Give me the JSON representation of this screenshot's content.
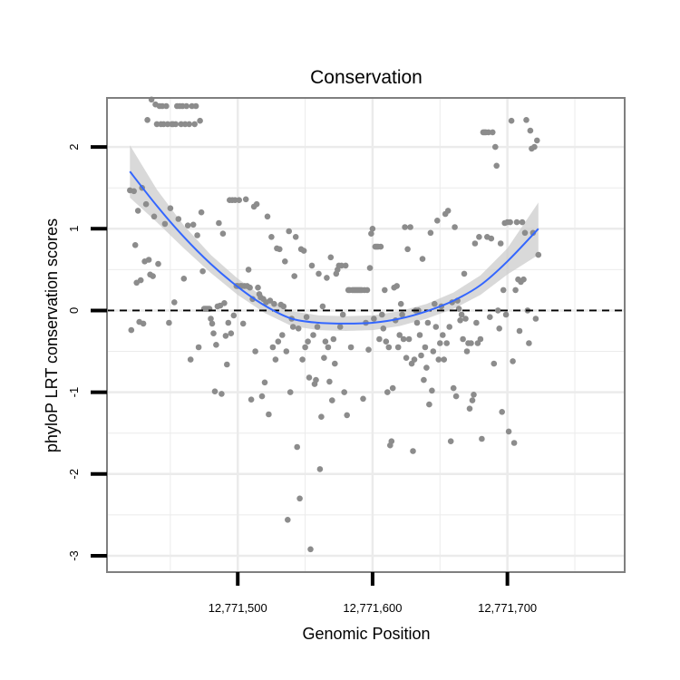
{
  "chart_data": {
    "type": "scatter",
    "title": "Conservation",
    "xlabel": "Genomic Position",
    "ylabel": "phyloP LRT conservation scores",
    "xlim": [
      12771403,
      12771787
    ],
    "ylim": [
      -3.2,
      2.6
    ],
    "x_ticks": [
      {
        "value": 12771500,
        "label": "12,771,500"
      },
      {
        "value": 12771600,
        "label": "12,771,600"
      },
      {
        "value": 12771700,
        "label": "12,771,700"
      }
    ],
    "y_ticks": [
      {
        "value": -3,
        "label": "-3"
      },
      {
        "value": -2,
        "label": "-2"
      },
      {
        "value": -1,
        "label": "-1"
      },
      {
        "value": 0,
        "label": "0"
      },
      {
        "value": 1,
        "label": "1"
      },
      {
        "value": 2,
        "label": "2"
      }
    ],
    "reference_line": {
      "y": 0,
      "style": "dashed"
    },
    "colors": {
      "points": "#8c8c8c",
      "smooth": "#3366ff",
      "ribbon": "#cccccc",
      "grid": "#ebebeb",
      "border": "#7f7f7f"
    },
    "points": [
      [
        12771420,
        1.47
      ],
      [
        12771421,
        -0.24
      ],
      [
        12771423,
        1.46
      ],
      [
        12771424,
        0.8
      ],
      [
        12771425,
        0.34
      ],
      [
        12771426,
        1.22
      ],
      [
        12771427,
        -0.14
      ],
      [
        12771428,
        0.37
      ],
      [
        12771429,
        1.5
      ],
      [
        12771430,
        -0.16
      ],
      [
        12771431,
        0.6
      ],
      [
        12771432,
        1.3
      ],
      [
        12771433,
        2.33
      ],
      [
        12771434,
        0.62
      ],
      [
        12771435,
        0.44
      ],
      [
        12771436,
        2.58
      ],
      [
        12771437,
        0.42
      ],
      [
        12771438,
        1.15
      ],
      [
        12771439,
        2.52
      ],
      [
        12771440,
        2.28
      ],
      [
        12771441,
        0.57
      ],
      [
        12771442,
        2.5
      ],
      [
        12771443,
        2.28
      ],
      [
        12771444,
        2.5
      ],
      [
        12771445,
        2.28
      ],
      [
        12771446,
        1.06
      ],
      [
        12771447,
        2.5
      ],
      [
        12771448,
        2.28
      ],
      [
        12771449,
        -0.15
      ],
      [
        12771450,
        1.25
      ],
      [
        12771451,
        2.28
      ],
      [
        12771452,
        2.28
      ],
      [
        12771453,
        0.1
      ],
      [
        12771454,
        2.28
      ],
      [
        12771455,
        2.5
      ],
      [
        12771456,
        1.12
      ],
      [
        12771457,
        2.5
      ],
      [
        12771458,
        2.28
      ],
      [
        12771459,
        2.5
      ],
      [
        12771460,
        0.39
      ],
      [
        12771461,
        2.28
      ],
      [
        12771462,
        2.5
      ],
      [
        12771463,
        1.04
      ],
      [
        12771464,
        2.28
      ],
      [
        12771465,
        -0.6
      ],
      [
        12771466,
        2.5
      ],
      [
        12771467,
        1.05
      ],
      [
        12771468,
        2.28
      ],
      [
        12771469,
        2.5
      ],
      [
        12771470,
        0.92
      ],
      [
        12771471,
        -0.45
      ],
      [
        12771472,
        2.32
      ],
      [
        12771473,
        1.2
      ],
      [
        12771474,
        0.48
      ],
      [
        12771475,
        0.02
      ],
      [
        12771476,
        0.02
      ],
      [
        12771477,
        0.02
      ],
      [
        12771478,
        0.02
      ],
      [
        12771479,
        0.02
      ],
      [
        12771480,
        -0.1
      ],
      [
        12771481,
        -0.16
      ],
      [
        12771482,
        -0.28
      ],
      [
        12771483,
        -0.99
      ],
      [
        12771484,
        -0.42
      ],
      [
        12771485,
        0.05
      ],
      [
        12771486,
        1.07
      ],
      [
        12771487,
        0.06
      ],
      [
        12771488,
        -1.02
      ],
      [
        12771489,
        0.94
      ],
      [
        12771490,
        0.09
      ],
      [
        12771491,
        -0.31
      ],
      [
        12771492,
        -0.66
      ],
      [
        12771493,
        -0.15
      ],
      [
        12771494,
        1.35
      ],
      [
        12771495,
        -0.28
      ],
      [
        12771496,
        1.35
      ],
      [
        12771497,
        -0.06
      ],
      [
        12771498,
        1.35
      ],
      [
        12771499,
        0.3
      ],
      [
        12771500,
        0.3
      ],
      [
        12771501,
        1.35
      ],
      [
        12771502,
        0.3
      ],
      [
        12771503,
        0.3
      ],
      [
        12771504,
        -0.16
      ],
      [
        12771505,
        0.3
      ],
      [
        12771506,
        1.36
      ],
      [
        12771507,
        0.3
      ],
      [
        12771508,
        0.5
      ],
      [
        12771509,
        0.28
      ],
      [
        12771510,
        -1.09
      ],
      [
        12771511,
        0.14
      ],
      [
        12771512,
        1.27
      ],
      [
        12771513,
        -0.5
      ],
      [
        12771514,
        1.3
      ],
      [
        12771515,
        0.28
      ],
      [
        12771516,
        0.2
      ],
      [
        12771517,
        0.16
      ],
      [
        12771518,
        -1.05
      ],
      [
        12771519,
        0.14
      ],
      [
        12771520,
        -0.88
      ],
      [
        12771521,
        0.1
      ],
      [
        12771522,
        1.15
      ],
      [
        12771523,
        -1.27
      ],
      [
        12771524,
        0.12
      ],
      [
        12771525,
        0.9
      ],
      [
        12771526,
        -0.45
      ],
      [
        12771527,
        0.08
      ],
      [
        12771528,
        -0.6
      ],
      [
        12771529,
        0.76
      ],
      [
        12771530,
        -0.38
      ],
      [
        12771531,
        0.75
      ],
      [
        12771532,
        0.07
      ],
      [
        12771533,
        -0.3
      ],
      [
        12771534,
        0.05
      ],
      [
        12771535,
        0.6
      ],
      [
        12771536,
        -0.5
      ],
      [
        12771537,
        -2.56
      ],
      [
        12771538,
        0.97
      ],
      [
        12771539,
        -1.0
      ],
      [
        12771540,
        -0.1
      ],
      [
        12771541,
        -0.2
      ],
      [
        12771542,
        0.42
      ],
      [
        12771543,
        0.9
      ],
      [
        12771544,
        -1.67
      ],
      [
        12771545,
        -0.22
      ],
      [
        12771546,
        -2.3
      ],
      [
        12771547,
        0.75
      ],
      [
        12771548,
        -0.6
      ],
      [
        12771549,
        0.73
      ],
      [
        12771550,
        -0.45
      ],
      [
        12771551,
        -0.08
      ],
      [
        12771552,
        -0.38
      ],
      [
        12771553,
        -0.82
      ],
      [
        12771554,
        -2.92
      ],
      [
        12771555,
        0.55
      ],
      [
        12771556,
        -0.3
      ],
      [
        12771557,
        -0.9
      ],
      [
        12771558,
        -0.85
      ],
      [
        12771559,
        -0.2
      ],
      [
        12771560,
        0.45
      ],
      [
        12771561,
        -1.94
      ],
      [
        12771562,
        -1.3
      ],
      [
        12771563,
        0.05
      ],
      [
        12771564,
        -0.58
      ],
      [
        12771565,
        -0.38
      ],
      [
        12771566,
        0.4
      ],
      [
        12771567,
        -0.45
      ],
      [
        12771568,
        -0.87
      ],
      [
        12771569,
        0.65
      ],
      [
        12771570,
        -1.1
      ],
      [
        12771571,
        -0.35
      ],
      [
        12771572,
        -0.65
      ],
      [
        12771573,
        0.45
      ],
      [
        12771574,
        0.5
      ],
      [
        12771575,
        0.55
      ],
      [
        12771576,
        -0.2
      ],
      [
        12771577,
        0.55
      ],
      [
        12771578,
        -0.05
      ],
      [
        12771579,
        -1.0
      ],
      [
        12771580,
        0.55
      ],
      [
        12771581,
        -1.28
      ],
      [
        12771582,
        0.25
      ],
      [
        12771583,
        0.25
      ],
      [
        12771584,
        -0.45
      ],
      [
        12771585,
        0.25
      ],
      [
        12771586,
        0.25
      ],
      [
        12771587,
        0.25
      ],
      [
        12771588,
        0.25
      ],
      [
        12771589,
        0.25
      ],
      [
        12771590,
        0.25
      ],
      [
        12771591,
        0.25
      ],
      [
        12771592,
        0.25
      ],
      [
        12771593,
        -1.08
      ],
      [
        12771594,
        0.25
      ],
      [
        12771595,
        -0.15
      ],
      [
        12771596,
        0.25
      ],
      [
        12771597,
        -0.48
      ],
      [
        12771598,
        0.52
      ],
      [
        12771599,
        0.94
      ],
      [
        12771600,
        1.0
      ],
      [
        12771601,
        -0.1
      ],
      [
        12771602,
        0.78
      ],
      [
        12771603,
        0.78
      ],
      [
        12771604,
        0.78
      ],
      [
        12771605,
        -0.35
      ],
      [
        12771606,
        0.78
      ],
      [
        12771607,
        -0.05
      ],
      [
        12771608,
        -0.22
      ],
      [
        12771609,
        0.25
      ],
      [
        12771610,
        -0.38
      ],
      [
        12771611,
        -1.0
      ],
      [
        12771612,
        -0.45
      ],
      [
        12771613,
        -1.65
      ],
      [
        12771614,
        -1.6
      ],
      [
        12771615,
        -0.95
      ],
      [
        12771616,
        0.28
      ],
      [
        12771617,
        -0.12
      ],
      [
        12771618,
        0.3
      ],
      [
        12771619,
        -0.45
      ],
      [
        12771620,
        -0.3
      ],
      [
        12771621,
        0.08
      ],
      [
        12771622,
        -0.05
      ],
      [
        12771623,
        -0.35
      ],
      [
        12771624,
        1.02
      ],
      [
        12771625,
        -0.58
      ],
      [
        12771626,
        0.75
      ],
      [
        12771627,
        -0.35
      ],
      [
        12771628,
        1.02
      ],
      [
        12771629,
        -0.65
      ],
      [
        12771630,
        -1.72
      ],
      [
        12771631,
        -0.6
      ],
      [
        12771632,
        0.0
      ],
      [
        12771633,
        -0.15
      ],
      [
        12771634,
        0.0
      ],
      [
        12771635,
        -0.3
      ],
      [
        12771636,
        -0.55
      ],
      [
        12771637,
        0.63
      ],
      [
        12771638,
        -0.85
      ],
      [
        12771639,
        -0.45
      ],
      [
        12771640,
        -0.7
      ],
      [
        12771641,
        -0.15
      ],
      [
        12771642,
        -1.15
      ],
      [
        12771643,
        0.95
      ],
      [
        12771644,
        -0.98
      ],
      [
        12771645,
        -0.5
      ],
      [
        12771646,
        0.08
      ],
      [
        12771647,
        -0.2
      ],
      [
        12771648,
        1.1
      ],
      [
        12771649,
        -0.6
      ],
      [
        12771650,
        -0.4
      ],
      [
        12771651,
        0.05
      ],
      [
        12771652,
        -0.3
      ],
      [
        12771653,
        -0.6
      ],
      [
        12771654,
        1.18
      ],
      [
        12771655,
        -0.4
      ],
      [
        12771656,
        1.22
      ],
      [
        12771657,
        -0.2
      ],
      [
        12771658,
        -1.6
      ],
      [
        12771659,
        0.1
      ],
      [
        12771660,
        -0.95
      ],
      [
        12771661,
        1.02
      ],
      [
        12771662,
        -1.05
      ],
      [
        12771663,
        0.12
      ],
      [
        12771664,
        0.02
      ],
      [
        12771665,
        -0.12
      ],
      [
        12771666,
        -0.05
      ],
      [
        12771667,
        -0.35
      ],
      [
        12771668,
        0.45
      ],
      [
        12771669,
        -0.1
      ],
      [
        12771670,
        -0.5
      ],
      [
        12771671,
        -0.4
      ],
      [
        12771672,
        -1.2
      ],
      [
        12771673,
        -0.4
      ],
      [
        12771674,
        -1.1
      ],
      [
        12771675,
        -1.03
      ],
      [
        12771676,
        0.82
      ],
      [
        12771677,
        -0.15
      ],
      [
        12771678,
        -0.4
      ],
      [
        12771679,
        0.9
      ],
      [
        12771680,
        -0.35
      ],
      [
        12771681,
        -1.57
      ],
      [
        12771682,
        2.18
      ],
      [
        12771683,
        2.18
      ],
      [
        12771684,
        2.18
      ],
      [
        12771685,
        0.9
      ],
      [
        12771686,
        2.18
      ],
      [
        12771687,
        -0.08
      ],
      [
        12771688,
        0.88
      ],
      [
        12771689,
        2.18
      ],
      [
        12771690,
        -0.65
      ],
      [
        12771691,
        2.0
      ],
      [
        12771692,
        1.77
      ],
      [
        12771693,
        0.0
      ],
      [
        12771694,
        -0.22
      ],
      [
        12771695,
        0.82
      ],
      [
        12771696,
        -1.24
      ],
      [
        12771697,
        0.25
      ],
      [
        12771698,
        1.07
      ],
      [
        12771699,
        -0.05
      ],
      [
        12771700,
        1.08
      ],
      [
        12771701,
        -1.48
      ],
      [
        12771702,
        1.08
      ],
      [
        12771703,
        2.32
      ],
      [
        12771704,
        -0.62
      ],
      [
        12771705,
        -1.62
      ],
      [
        12771706,
        0.25
      ],
      [
        12771707,
        1.08
      ],
      [
        12771708,
        0.38
      ],
      [
        12771709,
        -0.25
      ],
      [
        12771710,
        0.35
      ],
      [
        12771711,
        1.08
      ],
      [
        12771712,
        0.38
      ],
      [
        12771713,
        0.95
      ],
      [
        12771714,
        2.33
      ],
      [
        12771715,
        0.0
      ],
      [
        12771716,
        -0.4
      ],
      [
        12771717,
        2.2
      ],
      [
        12771718,
        1.98
      ],
      [
        12771719,
        0.95
      ],
      [
        12771720,
        2.0
      ],
      [
        12771721,
        -0.1
      ],
      [
        12771722,
        2.08
      ],
      [
        12771723,
        0.68
      ]
    ],
    "smooth": {
      "type": "loess",
      "x": [
        12771420,
        12771440,
        12771460,
        12771480,
        12771500,
        12771520,
        12771540,
        12771560,
        12771580,
        12771600,
        12771620,
        12771640,
        12771660,
        12771680,
        12771700,
        12771723
      ],
      "y": [
        1.7,
        1.28,
        0.9,
        0.57,
        0.29,
        0.06,
        -0.1,
        -0.15,
        -0.16,
        -0.15,
        -0.1,
        -0.01,
        0.12,
        0.31,
        0.6,
        1.0
      ],
      "se": [
        0.32,
        0.2,
        0.14,
        0.11,
        0.1,
        0.09,
        0.09,
        0.09,
        0.09,
        0.09,
        0.09,
        0.09,
        0.1,
        0.12,
        0.16,
        0.32
      ]
    }
  }
}
